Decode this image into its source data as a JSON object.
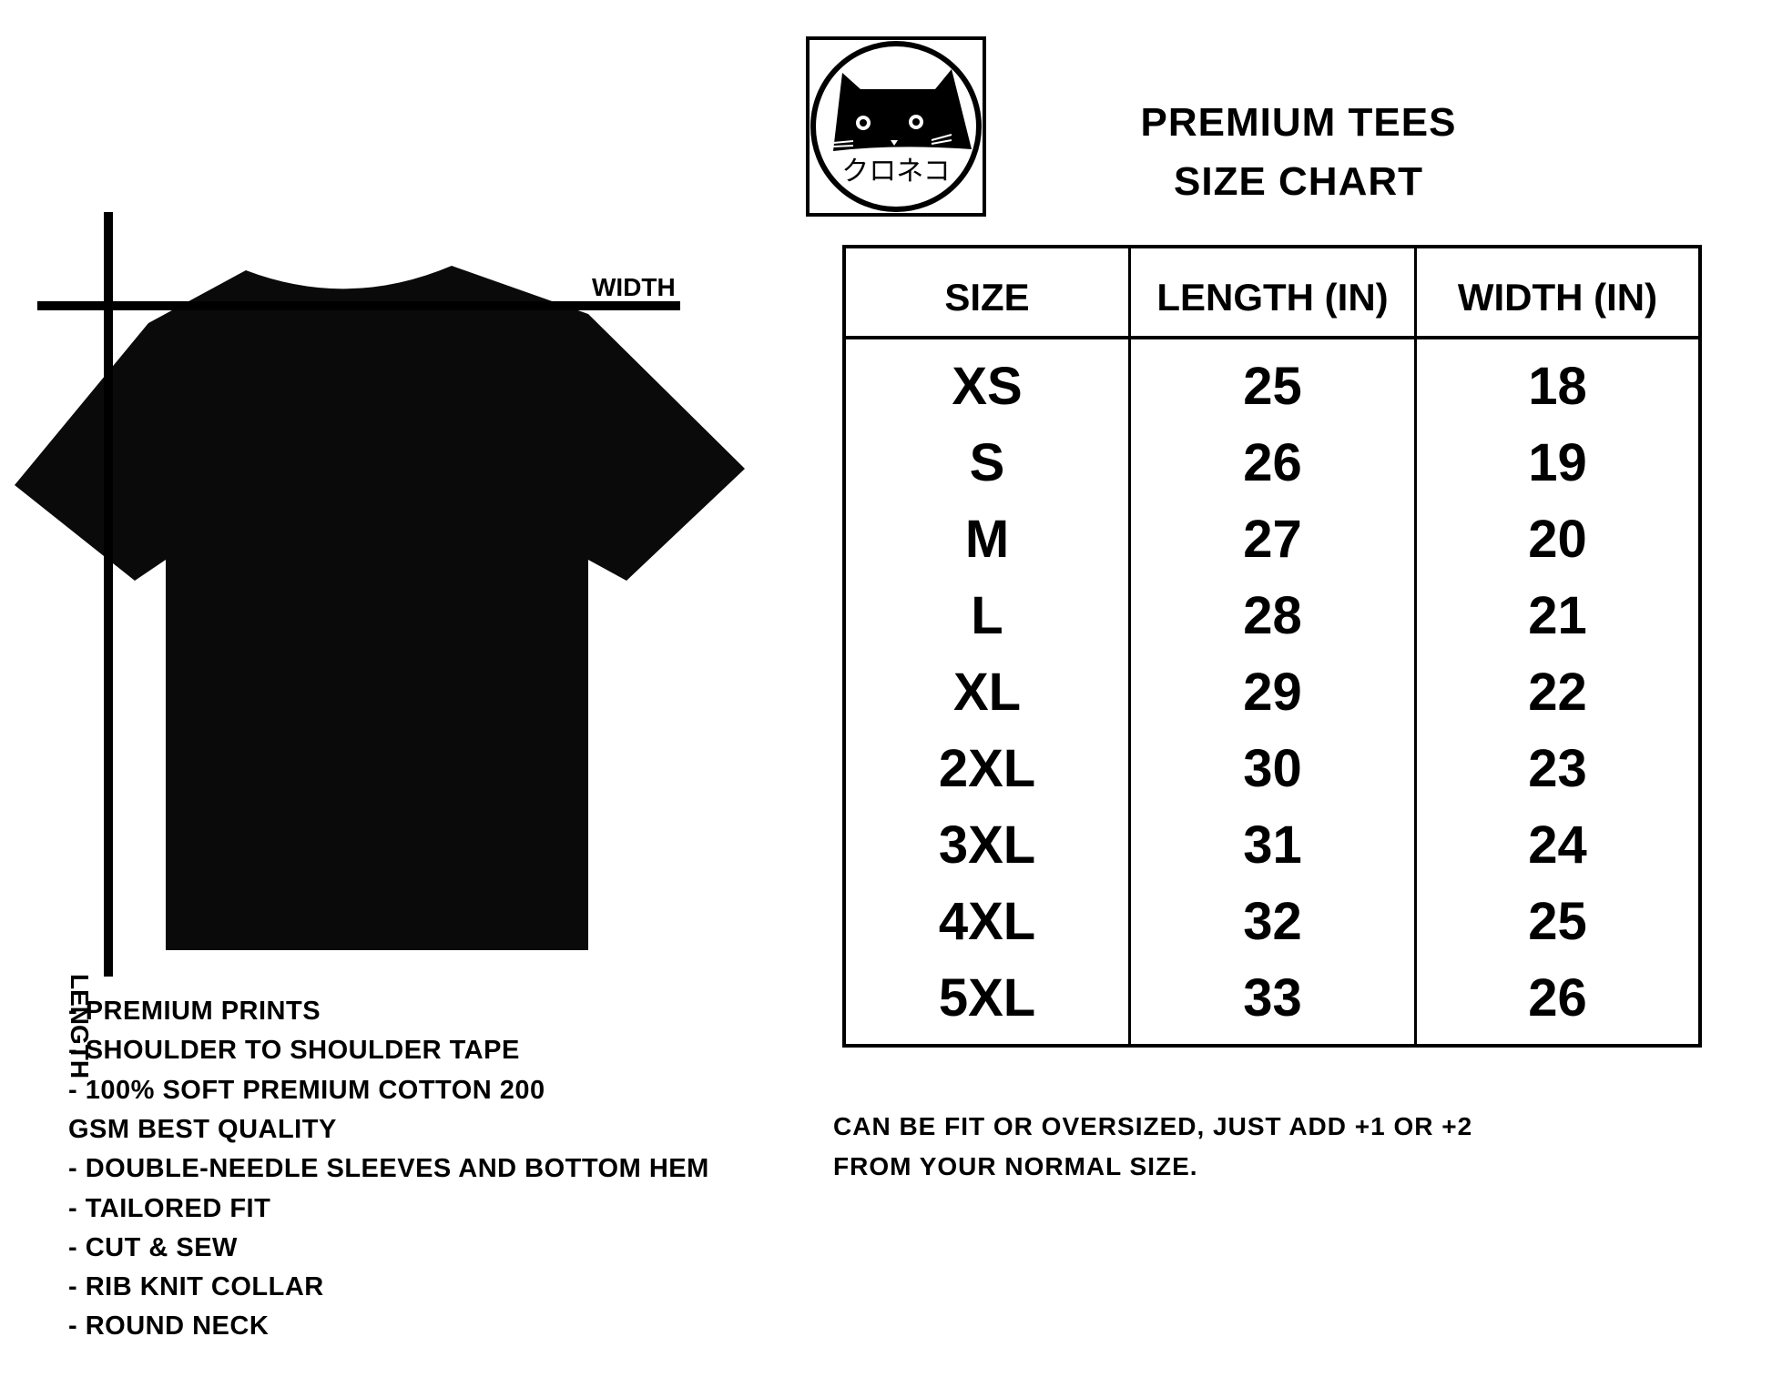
{
  "brand": {
    "logo_text": "クロネコ"
  },
  "header": {
    "line1": "PREMIUM TEES",
    "line2": "SIZE CHART"
  },
  "diagram": {
    "width_label": "WIDTH",
    "length_label": "LENGTH",
    "shirt_color": "#000000"
  },
  "table": {
    "columns": [
      "SIZE",
      "LENGTH (IN)",
      "WIDTH (IN)"
    ],
    "rows": [
      [
        "XS",
        "25",
        "18"
      ],
      [
        "S",
        "26",
        "19"
      ],
      [
        "M",
        "27",
        "20"
      ],
      [
        "L",
        "28",
        "21"
      ],
      [
        "XL",
        "29",
        "22"
      ],
      [
        "2XL",
        "30",
        "23"
      ],
      [
        "3XL",
        "31",
        "24"
      ],
      [
        "4XL",
        "32",
        "25"
      ],
      [
        "5XL",
        "33",
        "26"
      ]
    ]
  },
  "note": {
    "line1": "CAN BE FIT OR OVERSIZED, JUST ADD +1 OR +2",
    "line2": "FROM YOUR NORMAL SIZE."
  },
  "features": [
    "- PREMIUM PRINTS",
    "- SHOULDER TO SHOULDER TAPE",
    "- 100% SOFT PREMIUM COTTON 200",
    "GSM BEST QUALITY",
    "- DOUBLE-NEEDLE SLEEVES AND BOTTOM HEM",
    "- TAILORED FIT",
    "- CUT & SEW",
    "- RIB KNIT COLLAR",
    "- ROUND NECK"
  ]
}
